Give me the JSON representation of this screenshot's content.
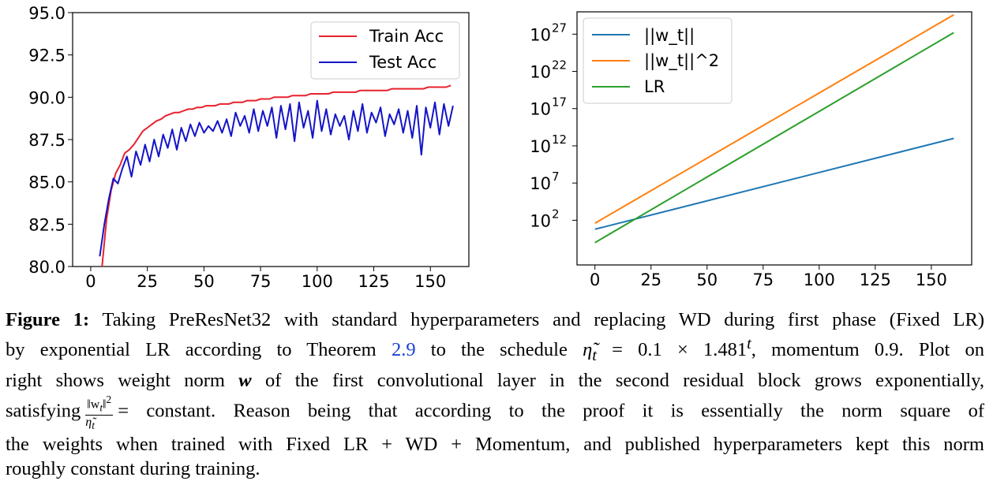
{
  "chart_data": [
    {
      "type": "line",
      "xlim": [
        -8,
        167
      ],
      "ylim": [
        80.0,
        95.0
      ],
      "xticks": [
        "0",
        "25",
        "50",
        "75",
        "100",
        "125",
        "150"
      ],
      "yticks": [
        "80.0",
        "82.5",
        "85.0",
        "87.5",
        "90.0",
        "92.5",
        "95.0"
      ],
      "grid": false,
      "legend": "top-right",
      "series": [
        {
          "name": "Train Acc",
          "color": "#e8212e",
          "x": [
            5,
            7,
            9,
            11,
            13,
            15,
            17,
            19,
            21,
            23,
            25,
            27,
            29,
            31,
            33,
            35,
            37,
            39,
            41,
            43,
            45,
            47,
            49,
            51,
            53,
            55,
            57,
            59,
            61,
            63,
            65,
            67,
            69,
            71,
            73,
            75,
            77,
            79,
            81,
            83,
            85,
            87,
            89,
            91,
            93,
            95,
            97,
            99,
            101,
            103,
            105,
            107,
            109,
            111,
            113,
            115,
            117,
            119,
            121,
            123,
            125,
            127,
            129,
            131,
            133,
            135,
            137,
            139,
            141,
            143,
            145,
            147,
            149,
            151,
            153,
            155,
            157,
            159
          ],
          "values": [
            80.0,
            82.8,
            84.5,
            85.5,
            86.0,
            86.7,
            86.9,
            87.2,
            87.6,
            88.0,
            88.2,
            88.4,
            88.6,
            88.7,
            88.9,
            89.0,
            89.1,
            89.1,
            89.2,
            89.3,
            89.3,
            89.4,
            89.4,
            89.5,
            89.5,
            89.5,
            89.6,
            89.6,
            89.6,
            89.7,
            89.7,
            89.7,
            89.8,
            89.8,
            89.8,
            89.9,
            89.9,
            89.9,
            90.0,
            90.0,
            90.0,
            90.0,
            90.1,
            90.1,
            90.1,
            90.1,
            90.2,
            90.2,
            90.2,
            90.2,
            90.2,
            90.3,
            90.3,
            90.3,
            90.3,
            90.3,
            90.3,
            90.4,
            90.4,
            90.4,
            90.4,
            90.4,
            90.4,
            90.4,
            90.5,
            90.5,
            90.5,
            90.5,
            90.5,
            90.5,
            90.5,
            90.5,
            90.6,
            90.6,
            90.6,
            90.6,
            90.6,
            90.7
          ]
        },
        {
          "name": "Test Acc",
          "color": "#1414c8",
          "x": [
            4,
            6,
            8,
            10,
            12,
            14,
            16,
            18,
            20,
            22,
            24,
            26,
            28,
            30,
            32,
            34,
            36,
            38,
            40,
            42,
            44,
            46,
            48,
            50,
            52,
            54,
            56,
            58,
            60,
            62,
            64,
            66,
            68,
            70,
            72,
            74,
            76,
            78,
            80,
            82,
            84,
            86,
            88,
            90,
            92,
            94,
            96,
            98,
            100,
            102,
            104,
            106,
            108,
            110,
            112,
            114,
            116,
            118,
            120,
            122,
            124,
            126,
            128,
            130,
            132,
            134,
            136,
            138,
            140,
            142,
            144,
            146,
            148,
            150,
            152,
            154,
            156,
            158,
            160
          ],
          "values": [
            80.6,
            82.5,
            84.0,
            85.2,
            84.9,
            85.8,
            86.5,
            85.3,
            86.8,
            86.0,
            87.2,
            86.2,
            87.5,
            86.5,
            87.8,
            87.0,
            88.1,
            86.9,
            88.2,
            87.4,
            88.4,
            87.7,
            88.5,
            87.9,
            88.3,
            88.0,
            88.6,
            87.9,
            88.7,
            87.7,
            89.1,
            88.3,
            88.9,
            87.9,
            89.3,
            88.0,
            89.2,
            88.3,
            89.4,
            87.6,
            89.5,
            88.1,
            89.6,
            87.4,
            89.7,
            88.2,
            89.2,
            87.6,
            89.8,
            88.0,
            89.3,
            87.8,
            89.0,
            88.3,
            88.9,
            87.5,
            89.2,
            88.0,
            89.6,
            87.9,
            89.1,
            88.5,
            89.4,
            87.7,
            89.0,
            88.4,
            89.3,
            87.9,
            89.2,
            87.6,
            89.5,
            86.6,
            89.4,
            88.2,
            89.7,
            87.8,
            89.6,
            88.3,
            89.5
          ]
        }
      ]
    },
    {
      "type": "line",
      "yscale": "log",
      "xlim": [
        -8,
        168
      ],
      "ylim_log10": [
        -4,
        30
      ],
      "xticks": [
        "0",
        "25",
        "50",
        "75",
        "100",
        "125",
        "150"
      ],
      "yticks": [
        {
          "base": "10",
          "exp": "2",
          "log10": 2
        },
        {
          "base": "10",
          "exp": "7",
          "log10": 7
        },
        {
          "base": "10",
          "exp": "12",
          "log10": 12
        },
        {
          "base": "10",
          "exp": "17",
          "log10": 17
        },
        {
          "base": "10",
          "exp": "22",
          "log10": 22
        },
        {
          "base": "10",
          "exp": "27",
          "log10": 27
        }
      ],
      "grid": false,
      "legend": "top-left",
      "series": [
        {
          "name": "||w_t||",
          "color": "#1f77b4",
          "x": [
            0,
            160
          ],
          "log10_values": [
            0.8,
            13.0
          ]
        },
        {
          "name": "||w_t||^2",
          "color": "#ff7f0e",
          "x": [
            0,
            160
          ],
          "log10_values": [
            1.6,
            29.6
          ]
        },
        {
          "name": "LR",
          "color": "#2ca02c",
          "x": [
            0,
            160
          ],
          "log10_values": [
            -1.0,
            27.2
          ]
        }
      ]
    }
  ],
  "caption": {
    "fig_label": "Figure 1:",
    "line1": "Taking PreResNet32 with standard hyperparameters and replacing WD during first phase (Fixed LR)",
    "line2_a": "by exponential LR according to Theorem",
    "line2_ref": "2.9",
    "line2_b": "to the schedule",
    "eta": "η̃",
    "sub_t": "t",
    "line2_eq": "= 0.1 × 1.481",
    "sup_t": "t",
    "line2_c": ", momentum 0.9. Plot on",
    "line3_a": "right shows weight norm",
    "w": "w",
    "line3_b": "of the first convolutional layer in the second residual block grows exponentially,",
    "line4_a": "satisfying",
    "frac_num": "‖w",
    "frac_num_sub": "t",
    "frac_num_end": "‖",
    "frac_num_sup": "2",
    "frac_den": "η̃",
    "frac_den_sub": "t",
    "line4_b": "= constant. Reason being that according to the proof it is essentially the norm square of",
    "line5": "the weights when trained with Fixed LR + WD + Momentum, and published hyperparameters kept this norm",
    "line6": "roughly constant during training."
  }
}
